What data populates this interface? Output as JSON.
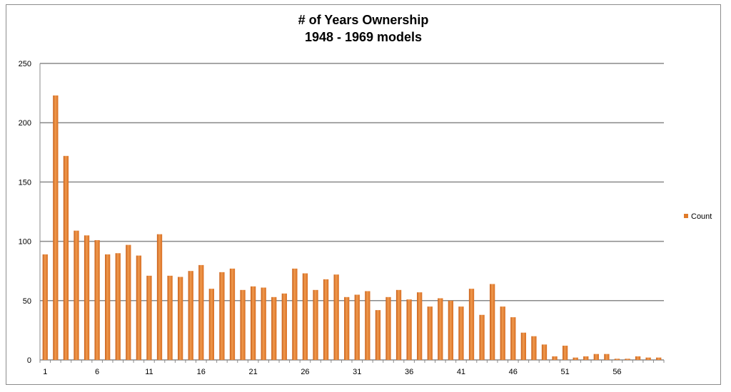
{
  "chart_data": {
    "type": "bar",
    "title": "# of Years Ownership",
    "subtitle": "1948 - 1969 models",
    "xlabel": "",
    "ylabel": "",
    "ylim": [
      0,
      250
    ],
    "yticks": [
      0,
      50,
      100,
      150,
      200,
      250
    ],
    "grid": true,
    "legend_position": "right",
    "bar_color": "#e07b2a",
    "categories": [
      1,
      2,
      3,
      4,
      5,
      6,
      7,
      8,
      9,
      10,
      11,
      12,
      13,
      14,
      15,
      16,
      17,
      18,
      19,
      20,
      21,
      22,
      23,
      24,
      25,
      26,
      27,
      28,
      29,
      30,
      31,
      32,
      33,
      34,
      35,
      36,
      37,
      38,
      39,
      40,
      41,
      42,
      43,
      44,
      45,
      46,
      47,
      48,
      49,
      50,
      51,
      52,
      53,
      54,
      55,
      56,
      57,
      58,
      59,
      60
    ],
    "xtick_labels": [
      "1",
      "6",
      "11",
      "16",
      "21",
      "26",
      "31",
      "36",
      "41",
      "46",
      "51",
      "56"
    ],
    "series": [
      {
        "name": "Count",
        "values": [
          89,
          223,
          172,
          109,
          105,
          101,
          89,
          90,
          97,
          88,
          71,
          106,
          71,
          70,
          75,
          80,
          60,
          74,
          77,
          59,
          62,
          61,
          53,
          56,
          77,
          73,
          59,
          68,
          72,
          53,
          55,
          58,
          42,
          53,
          59,
          51,
          57,
          45,
          52,
          50,
          45,
          60,
          38,
          64,
          45,
          36,
          23,
          20,
          13,
          3,
          12,
          2,
          3,
          5,
          5,
          1,
          1,
          3,
          2,
          2
        ]
      }
    ]
  }
}
